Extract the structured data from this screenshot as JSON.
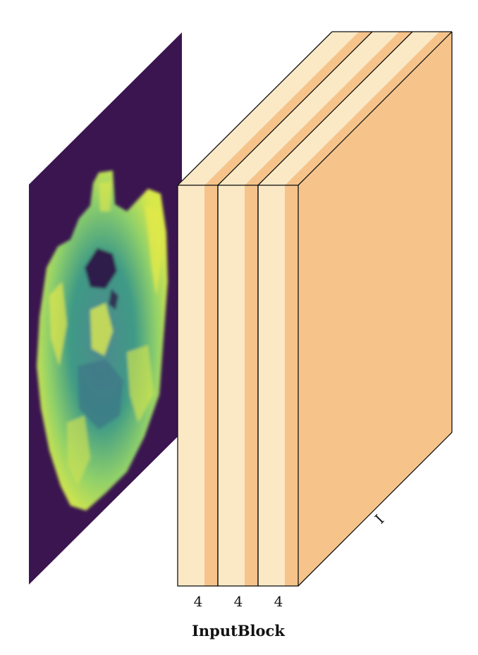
{
  "block": {
    "caption": "InputBlock",
    "depth_label": "I",
    "channel_labels": [
      "4",
      "4",
      "4"
    ]
  },
  "colors": {
    "layer_light": "#fbe9c6",
    "layer_dark": "#f6c48b",
    "mri_background": "#3a1550",
    "edge": "#111111"
  },
  "icons": {
    "input_image": "mri-brain-slice"
  }
}
